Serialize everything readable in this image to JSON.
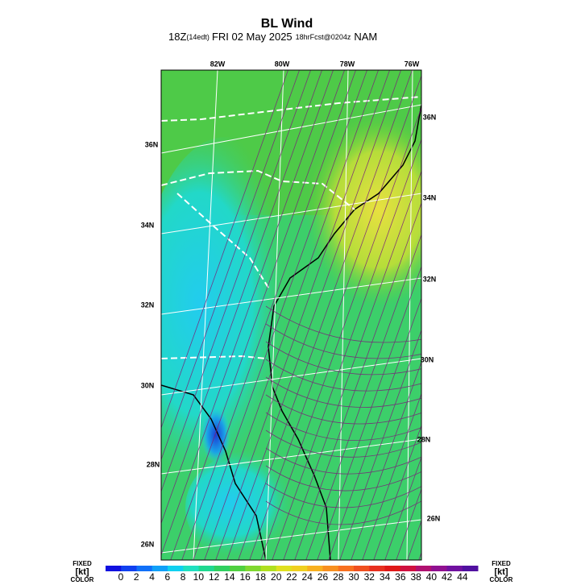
{
  "header": {
    "title": "BL Wind",
    "run": "18Z",
    "local": "(14edt)",
    "date": "FRI 02 May 2025",
    "forecast": "18hrFcst@0204z",
    "model": "NAM"
  },
  "map": {
    "lon_labels": [
      "82W",
      "80W",
      "78W",
      "76W"
    ],
    "lat_labels_left": [
      "36N",
      "34N",
      "32N",
      "30N",
      "28N",
      "26N"
    ],
    "lat_labels_right": [
      "36N",
      "34N",
      "32N",
      "30N",
      "28N",
      "26N"
    ]
  },
  "colorbar": {
    "labels": [
      0,
      2,
      4,
      6,
      8,
      10,
      12,
      14,
      16,
      18,
      20,
      22,
      24,
      26,
      28,
      30,
      32,
      34,
      36,
      38,
      40,
      42,
      44
    ],
    "left": [
      "FIXED",
      "[kt]",
      "COLOR"
    ],
    "right": [
      "FIXED",
      "[kt]",
      "COLOR"
    ]
  }
}
